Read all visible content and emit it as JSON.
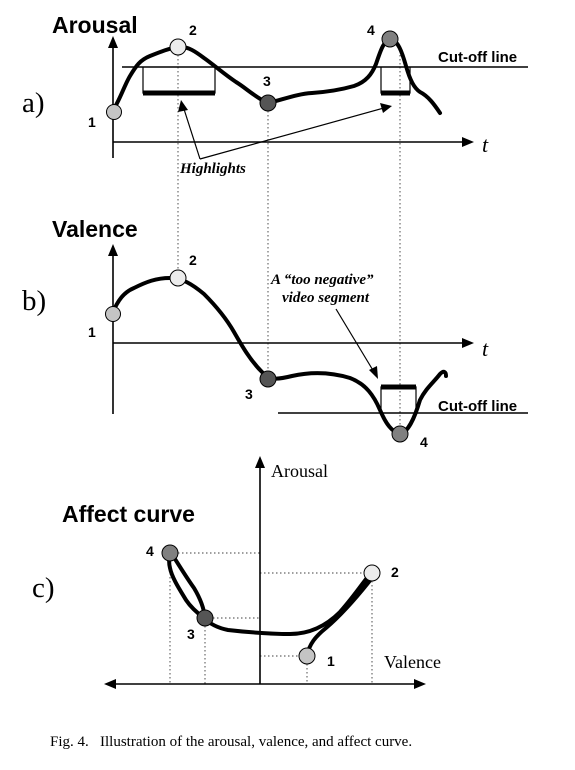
{
  "panel_a": {
    "tag": "a)",
    "title": "Arousal",
    "cutoff_label": "Cut-off line",
    "axis_t": "t",
    "highlights_label": "Highlights",
    "point_labels": [
      "1",
      "2",
      "3",
      "4"
    ]
  },
  "panel_b": {
    "tag": "b)",
    "title": "Valence",
    "cutoff_label": "Cut-off line",
    "axis_t": "t",
    "annotation_line1": "A “too negative”",
    "annotation_line2": "video segment",
    "point_labels": [
      "1",
      "2",
      "3",
      "4"
    ]
  },
  "panel_c": {
    "tag": "c)",
    "title": "Affect curve",
    "axis_arousal": "Arousal",
    "axis_valence": "Valence",
    "point_labels": [
      "1",
      "2",
      "3",
      "4"
    ]
  },
  "caption": "Fig. 4.   Illustration of the arousal, valence, and affect curve.",
  "colors": {
    "point_1": "#c4c4c4",
    "point_2": "#ececec",
    "point_3": "#555555",
    "point_4": "#808080"
  }
}
